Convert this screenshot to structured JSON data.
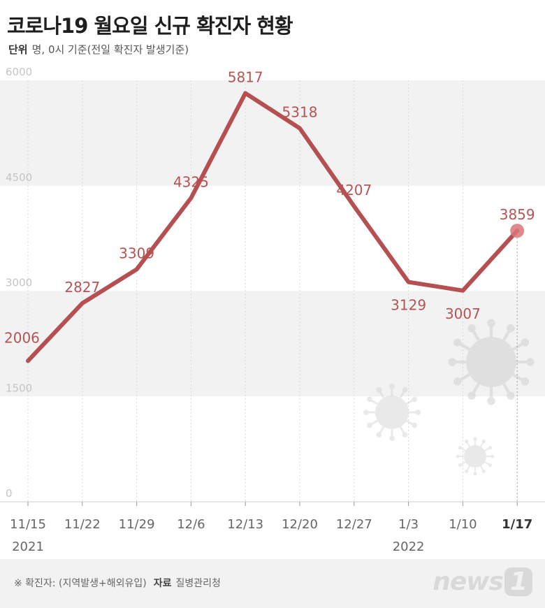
{
  "header": {
    "title": "코로나19 월요일 신규 확진자 현황",
    "unit_label": "단위",
    "unit_text": "명, 0시 기준(전일 확진자 발생기준)"
  },
  "footer": {
    "note": "※ 확진자: (지역발생+해외유입)",
    "source_label": "자료",
    "source": "질병관리청",
    "logo": "news",
    "logo_num": "1"
  },
  "colors": {
    "line": "#b54f51",
    "band": "#f2f2f2",
    "highlight": "#d9777a"
  },
  "chart_data": {
    "type": "line",
    "categories": [
      "11/15",
      "11/22",
      "11/29",
      "12/6",
      "12/13",
      "12/20",
      "12/27",
      "1/3",
      "1/10",
      "1/17"
    ],
    "year_labels": [
      {
        "index": 0,
        "label": "2021"
      },
      {
        "index": 7,
        "label": "2022"
      }
    ],
    "values": [
      2006,
      2827,
      3309,
      4325,
      5817,
      5318,
      4207,
      3129,
      3007,
      3859
    ],
    "label_offsets": [
      "left",
      "up",
      "up",
      "up",
      "up",
      "up",
      "up",
      "down",
      "down",
      "up"
    ],
    "highlight_index": 9,
    "ylim": [
      0,
      6000
    ],
    "yticks": [
      0,
      1500,
      3000,
      4500,
      6000
    ],
    "grid_bands": true
  }
}
